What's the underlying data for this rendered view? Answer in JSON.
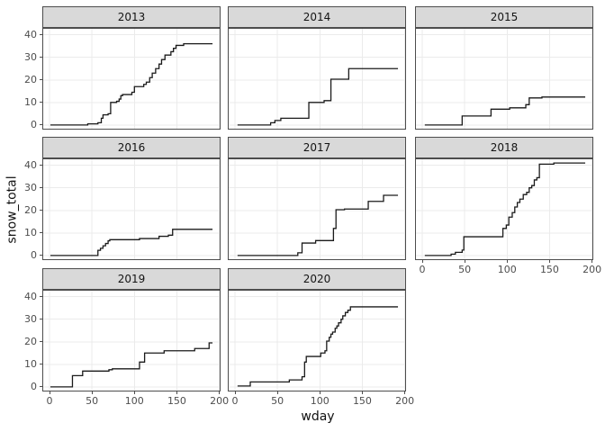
{
  "chart_data": {
    "type": "line",
    "subtype": "step-cumulative-faceted",
    "title": "",
    "xlabel": "wday",
    "ylabel": "snow_total",
    "legend": "none",
    "grid": "major",
    "x_ticks": [
      0,
      50,
      100,
      150,
      200
    ],
    "y_ticks": [
      0,
      10,
      20,
      30,
      40
    ],
    "xlim": [
      -8.5,
      201.5
    ],
    "ylim": [
      -2.05,
      43.05
    ],
    "line_color": "#1a1a1a",
    "strip_bg": "#d9d9d9",
    "panel_bg": "#ffffff",
    "grid_color": "#ebebeb",
    "border_color": "#4d4d4d",
    "tick_label_color": "#4d4d4d",
    "facets": [
      {
        "label": "2013",
        "row": 0,
        "col": 0,
        "y_axis": true,
        "x_axis": false,
        "points": [
          [
            1,
            0
          ],
          [
            45,
            0.5
          ],
          [
            57,
            1
          ],
          [
            61,
            3
          ],
          [
            63,
            4.5
          ],
          [
            69,
            5
          ],
          [
            72,
            10
          ],
          [
            79,
            10.5
          ],
          [
            82,
            11.5
          ],
          [
            84,
            13
          ],
          [
            86,
            13.5
          ],
          [
            97,
            14.5
          ],
          [
            100,
            17
          ],
          [
            111,
            18
          ],
          [
            114,
            19
          ],
          [
            118,
            21
          ],
          [
            121,
            23
          ],
          [
            125,
            25
          ],
          [
            129,
            27
          ],
          [
            132,
            29
          ],
          [
            136,
            31
          ],
          [
            143,
            32.5
          ],
          [
            146,
            34
          ],
          [
            149,
            35.3
          ],
          [
            158,
            36
          ],
          [
            192,
            36
          ]
        ]
      },
      {
        "label": "2014",
        "row": 0,
        "col": 1,
        "y_axis": false,
        "x_axis": false,
        "points": [
          [
            3,
            0
          ],
          [
            42,
            1
          ],
          [
            47,
            2
          ],
          [
            54,
            3
          ],
          [
            87,
            10
          ],
          [
            105,
            10.8
          ],
          [
            113,
            20.3
          ],
          [
            134,
            25
          ],
          [
            192,
            25
          ]
        ]
      },
      {
        "label": "2015",
        "row": 0,
        "col": 2,
        "y_axis": false,
        "x_axis": false,
        "points": [
          [
            3,
            0
          ],
          [
            47,
            4
          ],
          [
            81,
            7
          ],
          [
            103,
            7.6
          ],
          [
            122,
            9
          ],
          [
            126,
            12
          ],
          [
            141,
            12.4
          ],
          [
            192,
            12.4
          ]
        ]
      },
      {
        "label": "2016",
        "row": 1,
        "col": 0,
        "y_axis": true,
        "x_axis": false,
        "points": [
          [
            1,
            0
          ],
          [
            57,
            2.3
          ],
          [
            60,
            3.2
          ],
          [
            63,
            4.3
          ],
          [
            66,
            5.3
          ],
          [
            69,
            6.5
          ],
          [
            71,
            7
          ],
          [
            106,
            7.5
          ],
          [
            129,
            8.5
          ],
          [
            140,
            9
          ],
          [
            145,
            11.6
          ],
          [
            192,
            11.6
          ]
        ]
      },
      {
        "label": "2017",
        "row": 1,
        "col": 1,
        "y_axis": false,
        "x_axis": false,
        "points": [
          [
            3,
            0
          ],
          [
            74,
            1.2
          ],
          [
            79,
            5.5
          ],
          [
            95,
            6.6
          ],
          [
            116,
            12
          ],
          [
            119,
            20.3
          ],
          [
            129,
            20.6
          ],
          [
            157,
            24
          ],
          [
            175,
            26.7
          ],
          [
            192,
            26.7
          ]
        ]
      },
      {
        "label": "2018",
        "row": 1,
        "col": 2,
        "y_axis": false,
        "x_axis": true,
        "points": [
          [
            3,
            0
          ],
          [
            34,
            0.6
          ],
          [
            39,
            1.4
          ],
          [
            47,
            2.4
          ],
          [
            49,
            8.3
          ],
          [
            95,
            12
          ],
          [
            99,
            13.5
          ],
          [
            102,
            17
          ],
          [
            106,
            19
          ],
          [
            109,
            21.5
          ],
          [
            112,
            23.5
          ],
          [
            115,
            25
          ],
          [
            119,
            27
          ],
          [
            123,
            28
          ],
          [
            126,
            30
          ],
          [
            129,
            31
          ],
          [
            132,
            33.5
          ],
          [
            135,
            34.5
          ],
          [
            138,
            40.5
          ],
          [
            155,
            41
          ],
          [
            192,
            41
          ]
        ]
      },
      {
        "label": "2019",
        "row": 2,
        "col": 0,
        "y_axis": true,
        "x_axis": true,
        "points": [
          [
            1,
            0
          ],
          [
            27,
            5
          ],
          [
            39,
            7
          ],
          [
            70,
            7.6
          ],
          [
            74,
            8
          ],
          [
            106,
            11
          ],
          [
            112,
            15
          ],
          [
            135,
            16
          ],
          [
            171,
            17
          ],
          [
            188,
            19.5
          ],
          [
            192,
            19.5
          ]
        ]
      },
      {
        "label": "2020",
        "row": 2,
        "col": 1,
        "y_axis": false,
        "x_axis": true,
        "points": [
          [
            3,
            0.4
          ],
          [
            18,
            2.2
          ],
          [
            64,
            3.1
          ],
          [
            79,
            4.5
          ],
          [
            82,
            11
          ],
          [
            84,
            13.5
          ],
          [
            101,
            15
          ],
          [
            106,
            16
          ],
          [
            108,
            20.3
          ],
          [
            111,
            22
          ],
          [
            113,
            23.4
          ],
          [
            115,
            24.3
          ],
          [
            118,
            26
          ],
          [
            120,
            27
          ],
          [
            122,
            28.4
          ],
          [
            125,
            30
          ],
          [
            127,
            31.5
          ],
          [
            130,
            33
          ],
          [
            133,
            34
          ],
          [
            136,
            35.5
          ],
          [
            192,
            35.5
          ]
        ]
      }
    ]
  }
}
